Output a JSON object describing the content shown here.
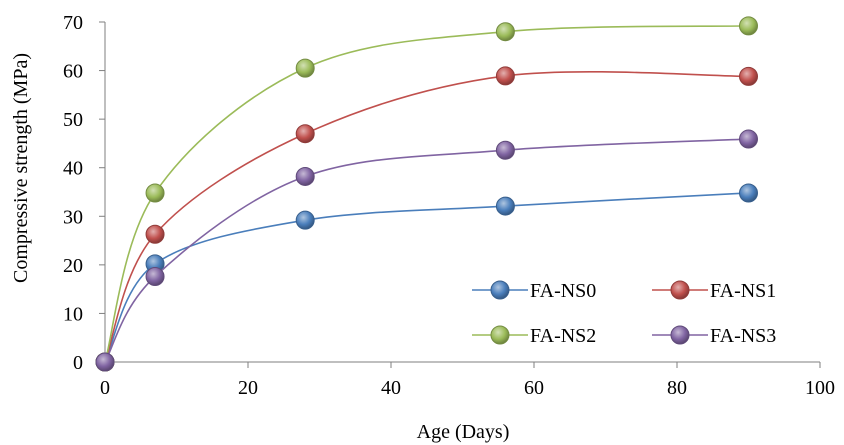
{
  "chart_data": {
    "type": "line",
    "title": "",
    "xlabel": "Age (Days)",
    "ylabel": "Compressive strength (MPa)",
    "xlim": [
      0,
      100
    ],
    "ylim": [
      0,
      70
    ],
    "x_ticks": [
      0,
      20,
      40,
      60,
      80,
      100
    ],
    "y_ticks": [
      0,
      10,
      20,
      30,
      40,
      50,
      60,
      70
    ],
    "grid": false,
    "smooth": true,
    "legend_position": "bottom-right",
    "x": [
      0,
      7,
      28,
      56,
      90
    ],
    "series": [
      {
        "name": "FA-NS0",
        "color": "#4a7ebb",
        "values": [
          0,
          20.2,
          29.2,
          32.1,
          34.8
        ]
      },
      {
        "name": "FA-NS1",
        "color": "#c0504d",
        "values": [
          0,
          26.3,
          47.0,
          58.9,
          58.8
        ]
      },
      {
        "name": "FA-NS2",
        "color": "#9bbb59",
        "values": [
          0,
          34.8,
          60.5,
          68.0,
          69.2
        ]
      },
      {
        "name": "FA-NS3",
        "color": "#8064a2",
        "values": [
          0,
          17.6,
          38.2,
          43.6,
          45.9
        ]
      }
    ]
  }
}
